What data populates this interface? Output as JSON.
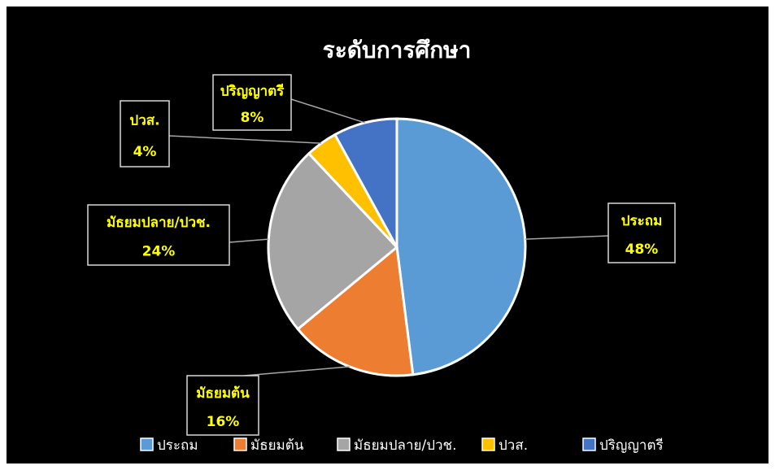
{
  "chart_data": {
    "type": "pie",
    "title": "ระดับการศึกษา",
    "categories": [
      "ประถม",
      "มัธยมต้น",
      "มัธยมปลาย/ปวช.",
      "ปวส.",
      "ปริญญาตรี"
    ],
    "values": [
      48,
      16,
      24,
      4,
      8
    ],
    "value_labels": [
      "48%",
      "16%",
      "24%",
      "4%",
      "8%"
    ],
    "colors": [
      "#5b9bd5",
      "#ed7d31",
      "#a5a5a5",
      "#ffc000",
      "#4472c4"
    ],
    "legend": "bottom"
  }
}
